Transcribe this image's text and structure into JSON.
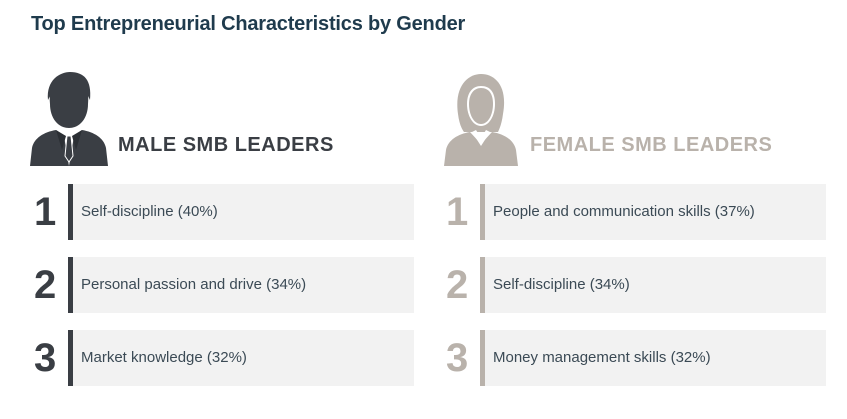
{
  "title": "Top Entrepreneurial Characteristics by Gender",
  "male": {
    "label": "MALE SMB LEADERS",
    "icon": "male-person-icon",
    "color": "#3a3e44",
    "items": [
      {
        "rank": "1",
        "text": "Self-discipline (40%)"
      },
      {
        "rank": "2",
        "text": "Personal passion and drive (34%)"
      },
      {
        "rank": "3",
        "text": "Market knowledge (32%)"
      }
    ]
  },
  "female": {
    "label": "FEMALE SMB LEADERS",
    "icon": "female-person-icon",
    "color": "#b9b2ab",
    "items": [
      {
        "rank": "1",
        "text": "People and communication skills (37%)"
      },
      {
        "rank": "2",
        "text": "Self-discipline (34%)"
      },
      {
        "rank": "3",
        "text": "Money management skills (32%)"
      }
    ]
  }
}
